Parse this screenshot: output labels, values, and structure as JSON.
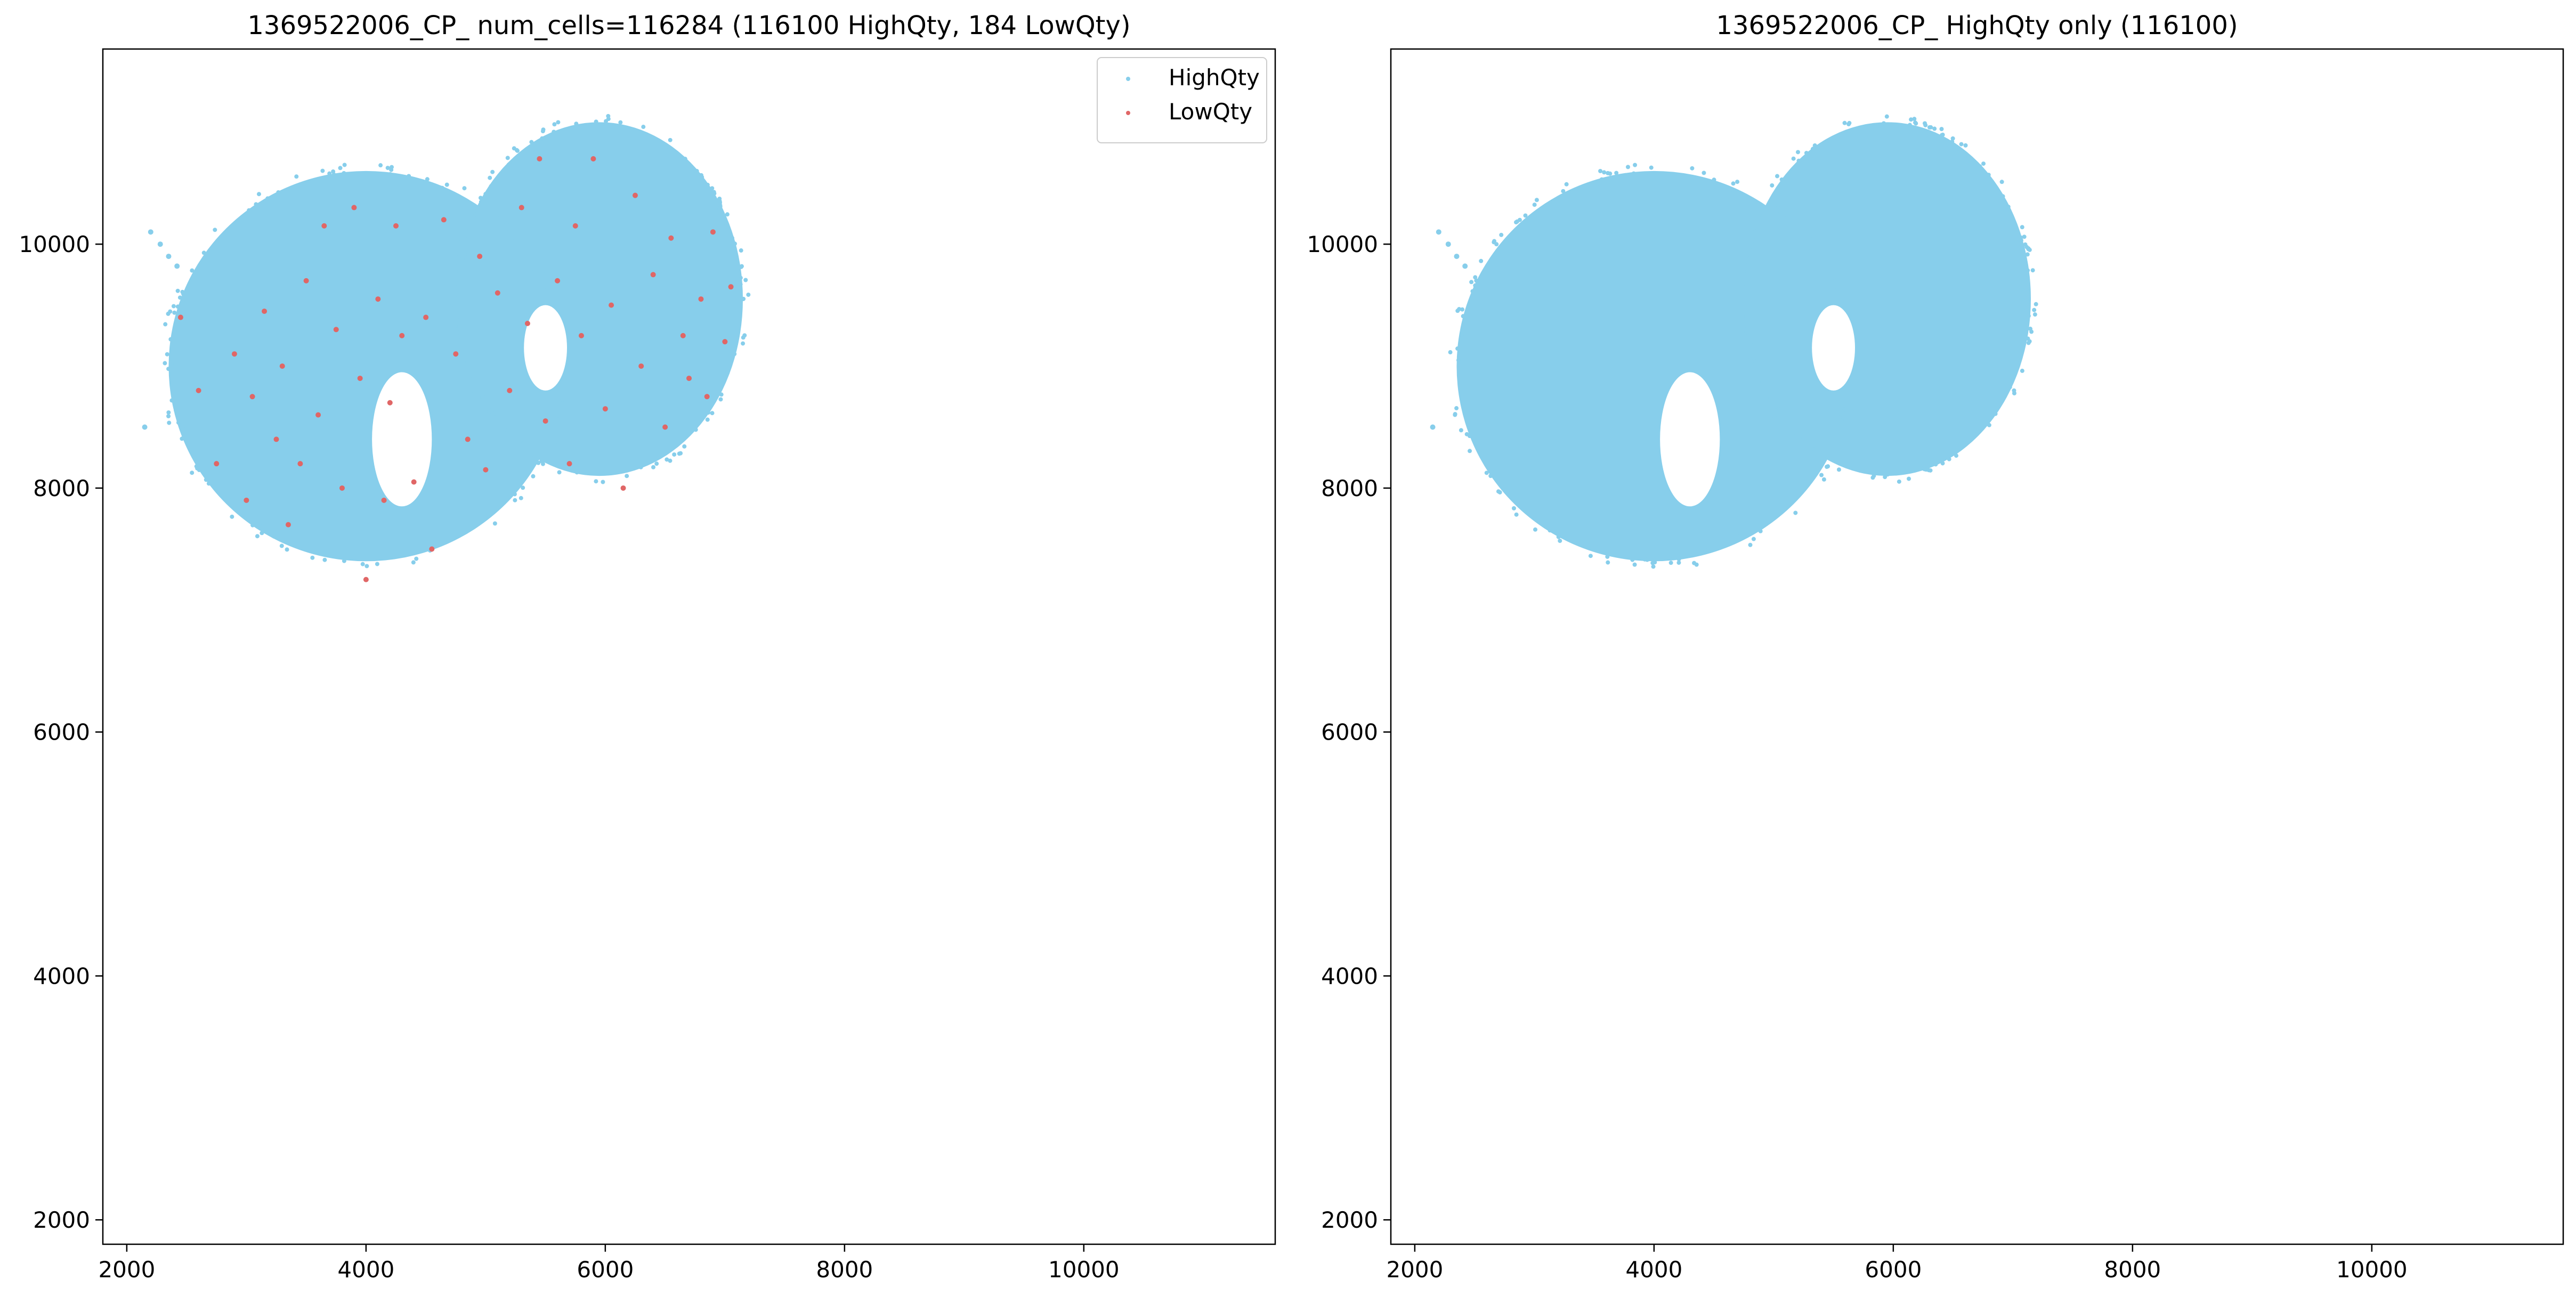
{
  "chart_data": [
    {
      "type": "scatter",
      "title": "1369522006_CP_ num_cells=116284 (116100 HighQty, 184 LowQty)",
      "xlabel": "",
      "ylabel": "",
      "xlim": [
        1800,
        11600
      ],
      "ylim": [
        1800,
        11600
      ],
      "xticks": [
        2000,
        4000,
        6000,
        8000,
        10000
      ],
      "yticks": [
        2000,
        4000,
        6000,
        8000,
        10000
      ],
      "grid": false,
      "legend": {
        "placement": "top-right",
        "entries": [
          "HighQty",
          "LowQty"
        ]
      },
      "series": [
        {
          "name": "HighQty",
          "color": "#87ceeb",
          "count": 116100,
          "shape": "two overlapping roughly elliptical lobes",
          "region": {
            "left_lobe": {
              "center": [
                4000,
                9000
              ],
              "radius_x": 1650,
              "radius_y": 1600
            },
            "right_lobe": {
              "center": [
                5950,
                9550
              ],
              "radius_x": 1200,
              "radius_y": 1450
            },
            "voids": [
              {
                "center": [
                  4300,
                  8400
                ],
                "radius_x": 250,
                "radius_y": 550
              },
              {
                "center": [
                  5500,
                  9150
                ],
                "radius_x": 180,
                "radius_y": 350
              }
            ],
            "x_range": [
              2200,
              7100
            ],
            "y_range": [
              7150,
              11000
            ]
          }
        },
        {
          "name": "LowQty",
          "color": "#e06666",
          "count": 184,
          "points": [
            [
              2450,
              9400
            ],
            [
              2600,
              8800
            ],
            [
              2750,
              8200
            ],
            [
              2900,
              9100
            ],
            [
              3000,
              7900
            ],
            [
              3050,
              8750
            ],
            [
              3150,
              9450
            ],
            [
              3250,
              8400
            ],
            [
              3300,
              9000
            ],
            [
              3350,
              7700
            ],
            [
              3450,
              8200
            ],
            [
              3500,
              9700
            ],
            [
              3600,
              8600
            ],
            [
              3650,
              10150
            ],
            [
              3750,
              9300
            ],
            [
              3800,
              8000
            ],
            [
              3900,
              10300
            ],
            [
              3950,
              8900
            ],
            [
              4000,
              7250
            ],
            [
              4100,
              9550
            ],
            [
              4150,
              7900
            ],
            [
              4200,
              8700
            ],
            [
              4250,
              10150
            ],
            [
              4300,
              9250
            ],
            [
              4400,
              8050
            ],
            [
              4500,
              9400
            ],
            [
              4550,
              7500
            ],
            [
              4650,
              10200
            ],
            [
              4750,
              9100
            ],
            [
              4850,
              8400
            ],
            [
              4950,
              9900
            ],
            [
              5000,
              8150
            ],
            [
              5100,
              9600
            ],
            [
              5200,
              8800
            ],
            [
              5300,
              10300
            ],
            [
              5350,
              9350
            ],
            [
              5450,
              10700
            ],
            [
              5500,
              8550
            ],
            [
              5600,
              9700
            ],
            [
              5700,
              8200
            ],
            [
              5750,
              10150
            ],
            [
              5800,
              9250
            ],
            [
              5900,
              10700
            ],
            [
              6000,
              8650
            ],
            [
              6050,
              9500
            ],
            [
              6150,
              8000
            ],
            [
              6250,
              10400
            ],
            [
              6300,
              9000
            ],
            [
              6400,
              9750
            ],
            [
              6500,
              8500
            ],
            [
              6550,
              10050
            ],
            [
              6650,
              9250
            ],
            [
              6700,
              8900
            ],
            [
              6800,
              9550
            ],
            [
              6850,
              8750
            ],
            [
              6900,
              10100
            ],
            [
              7000,
              9200
            ],
            [
              7050,
              9650
            ]
          ]
        }
      ]
    },
    {
      "type": "scatter",
      "title": "1369522006_CP_ HighQty only (116100)",
      "xlabel": "",
      "ylabel": "",
      "xlim": [
        1800,
        11600
      ],
      "ylim": [
        1800,
        11600
      ],
      "xticks": [
        2000,
        4000,
        6000,
        8000,
        10000
      ],
      "yticks": [
        2000,
        4000,
        6000,
        8000,
        10000
      ],
      "grid": false,
      "series": [
        {
          "name": "HighQty",
          "color": "#87ceeb",
          "count": 116100,
          "shape": "two overlapping roughly elliptical lobes",
          "region": {
            "left_lobe": {
              "center": [
                4000,
                9000
              ],
              "radius_x": 1650,
              "radius_y": 1600
            },
            "right_lobe": {
              "center": [
                5950,
                9550
              ],
              "radius_x": 1200,
              "radius_y": 1450
            },
            "voids": [
              {
                "center": [
                  4300,
                  8400
                ],
                "radius_x": 250,
                "radius_y": 550
              },
              {
                "center": [
                  5500,
                  9150
                ],
                "radius_x": 180,
                "radius_y": 350
              }
            ],
            "x_range": [
              2200,
              7100
            ],
            "y_range": [
              7150,
              11000
            ]
          }
        }
      ]
    }
  ]
}
